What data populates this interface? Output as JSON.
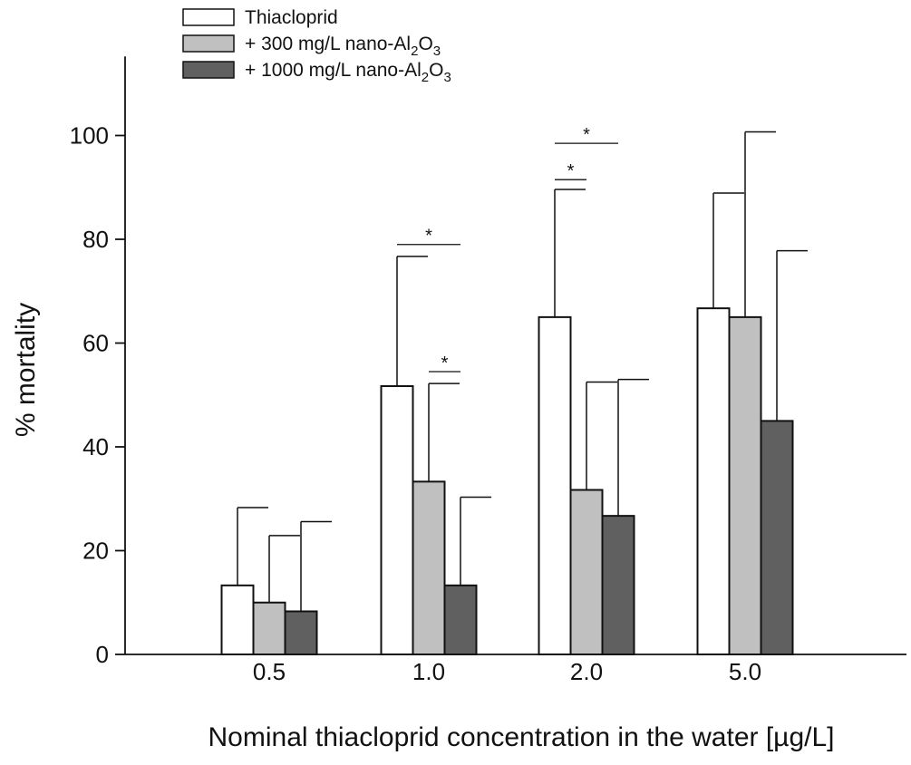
{
  "chart_data": {
    "type": "bar",
    "title": "",
    "xlabel": "Nominal thiacloprid concentration in the water [µg/L]",
    "ylabel": "% mortality",
    "ylim": [
      0,
      110
    ],
    "yticks": [
      0,
      20,
      40,
      60,
      80,
      100
    ],
    "grid": false,
    "legend_position": "top-left",
    "categories": [
      "0.5",
      "1.0",
      "2.0",
      "5.0"
    ],
    "series": [
      {
        "name": "Thiacloprid",
        "color": "#ffffff",
        "values": [
          13.3,
          51.7,
          65.0,
          66.7
        ],
        "error": [
          15.0,
          25.0,
          24.6,
          22.2
        ]
      },
      {
        "name": "+ 300 mg/L nano-Al2O3",
        "color": "#c0c0c0",
        "values": [
          10.0,
          33.3,
          31.7,
          65.0
        ],
        "error": [
          12.9,
          18.9,
          20.8,
          35.7
        ]
      },
      {
        "name": "+ 1000 mg/L nano-Al2O3",
        "color": "#606060",
        "values": [
          8.3,
          13.3,
          26.7,
          45.0
        ],
        "error": [
          17.3,
          17.0,
          26.3,
          32.8
        ]
      }
    ],
    "significance": [
      {
        "category": "1.0",
        "from_series": 0,
        "to_series": 2,
        "y": 79,
        "label": "*"
      },
      {
        "category": "1.0",
        "from_series": 1,
        "to_series": 2,
        "y": 54.5,
        "label": "*"
      },
      {
        "category": "2.0",
        "from_series": 0,
        "to_series": 1,
        "y": 91.5,
        "label": "*"
      },
      {
        "category": "2.0",
        "from_series": 0,
        "to_series": 2,
        "y": 98.5,
        "label": "*"
      }
    ]
  }
}
